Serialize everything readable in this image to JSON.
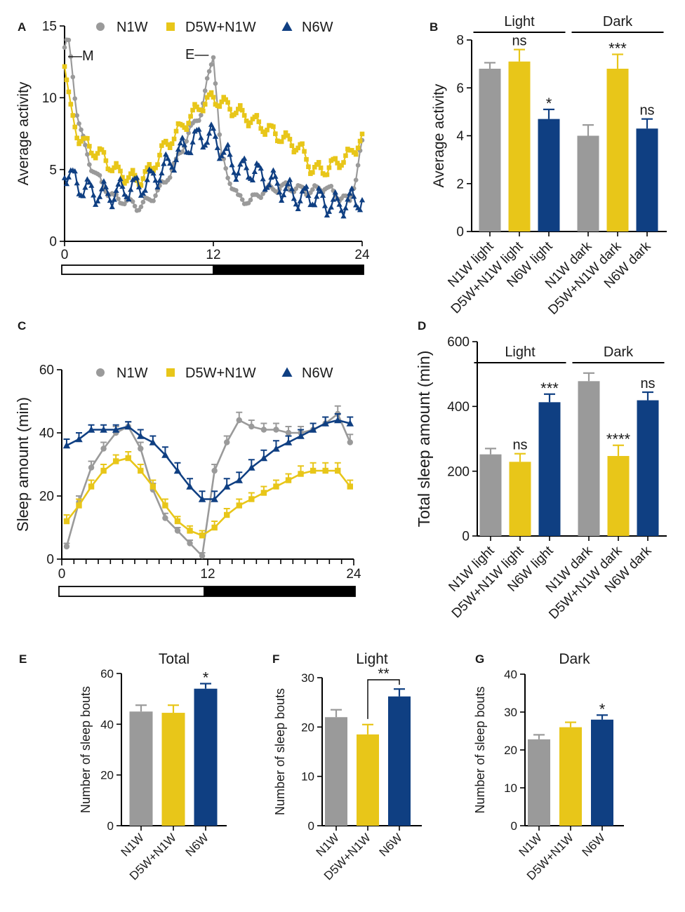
{
  "colors": {
    "n1w": "#9a9a9a",
    "d5w": "#e8c619",
    "n6w": "#0f3f82",
    "axis": "#000000"
  },
  "legend": {
    "n1w": "N1W",
    "d5w": "D5W+N1W",
    "n6w": "N6W"
  },
  "chart_data": [
    {
      "id": "A",
      "panel": "A",
      "type": "line",
      "ylabel": "Average activity",
      "xlabel": "",
      "ylim": [
        0,
        15
      ],
      "xlim": [
        0,
        24
      ],
      "yticks": [
        "0",
        "5",
        "10",
        "15"
      ],
      "xticks": [
        "0",
        "12",
        "24"
      ],
      "annotations": [
        "M",
        "E"
      ],
      "light_dark_bar": [
        "light 0-12",
        "dark 12-24"
      ],
      "series": [
        {
          "name": "N1W",
          "color": "#9a9a9a",
          "marker": "circle",
          "anchors": [
            [
              0,
              13.5
            ],
            [
              0.3,
              14
            ],
            [
              0.6,
              12
            ],
            [
              1,
              9
            ],
            [
              1.5,
              7
            ],
            [
              2,
              5.5
            ],
            [
              3,
              4
            ],
            [
              4,
              3
            ],
            [
              5,
              2.8
            ],
            [
              6,
              2.4
            ],
            [
              7,
              3
            ],
            [
              8,
              4
            ],
            [
              9,
              5.5
            ],
            [
              10,
              7.5
            ],
            [
              11,
              9
            ],
            [
              11.5,
              11
            ],
            [
              12,
              13
            ],
            [
              12.3,
              10
            ],
            [
              12.6,
              6
            ],
            [
              13.2,
              4.5
            ],
            [
              14,
              3
            ],
            [
              15,
              2.8
            ],
            [
              16,
              3.5
            ],
            [
              17,
              3.7
            ],
            [
              18,
              3.8
            ],
            [
              19,
              3.6
            ],
            [
              20,
              3.5
            ],
            [
              21,
              3.8
            ],
            [
              22,
              3.2
            ],
            [
              23,
              2.8
            ],
            [
              23.5,
              4.5
            ],
            [
              24,
              6.8
            ]
          ]
        },
        {
          "name": "D5W+N1W",
          "color": "#e8c619",
          "marker": "square",
          "anchors": [
            [
              0,
              12.5
            ],
            [
              0.5,
              9
            ],
            [
              1,
              7.5
            ],
            [
              2,
              6.5
            ],
            [
              3,
              6
            ],
            [
              4,
              5
            ],
            [
              5,
              4.5
            ],
            [
              6,
              4.3
            ],
            [
              7,
              5
            ],
            [
              8,
              6.5
            ],
            [
              9,
              7.5
            ],
            [
              10,
              8.5
            ],
            [
              11,
              9.5
            ],
            [
              12,
              10
            ],
            [
              13,
              9.5
            ],
            [
              14,
              9
            ],
            [
              15,
              8.5
            ],
            [
              16,
              8
            ],
            [
              17,
              7.5
            ],
            [
              18,
              7
            ],
            [
              19,
              6.5
            ],
            [
              20,
              5
            ],
            [
              21,
              5
            ],
            [
              22,
              5.5
            ],
            [
              23,
              6
            ],
            [
              24,
              7.2
            ]
          ]
        },
        {
          "name": "N6W",
          "color": "#0f3f82",
          "marker": "triangle",
          "anchors": [
            [
              0,
              5
            ],
            [
              1,
              4
            ],
            [
              2,
              3.5
            ],
            [
              3,
              3.3
            ],
            [
              4,
              3.3
            ],
            [
              5,
              3.7
            ],
            [
              6,
              3.8
            ],
            [
              7,
              4.3
            ],
            [
              8,
              5
            ],
            [
              9,
              6
            ],
            [
              10,
              6.8
            ],
            [
              11,
              7.3
            ],
            [
              12,
              7.3
            ],
            [
              13,
              6
            ],
            [
              14,
              5
            ],
            [
              15,
              5
            ],
            [
              16,
              4.5
            ],
            [
              17,
              4
            ],
            [
              18,
              3.5
            ],
            [
              19,
              3
            ],
            [
              20,
              3.2
            ],
            [
              21,
              2.7
            ],
            [
              22,
              2.5
            ],
            [
              23,
              2.8
            ],
            [
              24,
              3
            ]
          ]
        }
      ]
    },
    {
      "id": "B",
      "panel": "B",
      "type": "bar",
      "ylabel": "Average activity",
      "ylim": [
        0,
        8
      ],
      "yticks": [
        "0",
        "2",
        "4",
        "6",
        "8"
      ],
      "categories": [
        "N1W light",
        "D5W+N1W light",
        "N6W light",
        "N1W dark",
        "D5W+N1W dark",
        "N6W dark"
      ],
      "values": [
        6.8,
        7.1,
        4.7,
        4.0,
        6.8,
        4.3
      ],
      "errors": [
        0.25,
        0.5,
        0.4,
        0.45,
        0.6,
        0.4
      ],
      "colors": [
        "#9a9a9a",
        "#e8c619",
        "#0f3f82",
        "#9a9a9a",
        "#e8c619",
        "#0f3f82"
      ],
      "sig": [
        "",
        "ns",
        "*",
        "",
        "***",
        "ns"
      ],
      "groups": [
        {
          "label": "Light",
          "from": 0,
          "to": 2
        },
        {
          "label": "Dark",
          "from": 3,
          "to": 5
        }
      ]
    },
    {
      "id": "C",
      "panel": "C",
      "type": "line",
      "ylabel": "Sleep amount (min)",
      "ylim": [
        0,
        60
      ],
      "xlim": [
        0,
        24
      ],
      "yticks": [
        "0",
        "20",
        "40",
        "60"
      ],
      "xticks": [
        "0",
        "12",
        "24"
      ],
      "light_dark_bar": [
        "light 0-12",
        "dark 12-24"
      ],
      "series": [
        {
          "name": "N1W",
          "color": "#9a9a9a",
          "marker": "circle",
          "values": [
            4,
            18,
            29,
            35,
            40,
            42,
            35,
            22,
            13,
            9,
            5,
            1,
            28,
            37,
            44,
            42,
            41,
            41,
            40,
            40,
            41,
            43,
            46,
            37
          ],
          "errors": [
            1,
            2,
            2,
            2,
            2,
            1.5,
            2,
            2,
            1.5,
            1,
            1,
            1,
            2,
            2,
            2.5,
            2,
            2,
            2,
            2,
            2,
            2,
            2,
            2.5,
            2.5
          ]
        },
        {
          "name": "D5W+N1W",
          "color": "#e8c619",
          "marker": "square",
          "values": [
            12,
            17,
            23,
            28,
            31,
            32,
            28,
            23,
            17,
            12,
            9,
            7.5,
            10,
            14,
            17,
            19,
            21,
            23,
            25,
            27,
            28,
            28,
            28,
            23
          ],
          "errors": [
            2,
            2,
            2,
            2,
            2,
            2,
            2,
            2,
            2,
            1.5,
            1.5,
            1.5,
            2,
            2,
            2,
            2,
            2,
            2,
            2,
            2.5,
            2.5,
            2.5,
            2.5,
            2
          ]
        },
        {
          "name": "N6W",
          "color": "#0f3f82",
          "marker": "triangle",
          "values": [
            36,
            38,
            41,
            41,
            41,
            42,
            39,
            37,
            33,
            28,
            23,
            19,
            19,
            23,
            25,
            29,
            32,
            35,
            37,
            39,
            41,
            43,
            44,
            43
          ],
          "errors": [
            2,
            2,
            1.5,
            1.5,
            1.5,
            1.5,
            2,
            2,
            2.5,
            2.5,
            2.5,
            2.5,
            2.5,
            2.5,
            2.5,
            2.5,
            2.5,
            2.5,
            2,
            2,
            2,
            2,
            2,
            2
          ]
        }
      ]
    },
    {
      "id": "D",
      "panel": "D",
      "type": "bar",
      "ylabel": "Total sleep amount (min)",
      "ylim": [
        0,
        600
      ],
      "yticks": [
        "0",
        "200",
        "400",
        "600"
      ],
      "categories": [
        "N1W light",
        "D5W+N1W light",
        "N6W light",
        "N1W dark",
        "D5W+N1W dark",
        "N6W dark"
      ],
      "values": [
        252,
        229,
        413,
        478,
        247,
        419
      ],
      "errors": [
        18,
        25,
        25,
        25,
        33,
        25
      ],
      "colors": [
        "#9a9a9a",
        "#e8c619",
        "#0f3f82",
        "#9a9a9a",
        "#e8c619",
        "#0f3f82"
      ],
      "sig": [
        "",
        "ns",
        "***",
        "",
        "****",
        "ns"
      ],
      "groups": [
        {
          "label": "Light",
          "from": 0,
          "to": 2
        },
        {
          "label": "Dark",
          "from": 3,
          "to": 5
        }
      ]
    },
    {
      "id": "E",
      "panel": "E",
      "type": "bar",
      "title": "Total",
      "ylabel": "Number of sleep bouts",
      "ylim": [
        0,
        60
      ],
      "yticks": [
        "0",
        "20",
        "40",
        "60"
      ],
      "categories": [
        "N1W",
        "D5W+N1W",
        "N6W"
      ],
      "values": [
        45,
        44.5,
        54
      ],
      "errors": [
        2.5,
        3,
        2
      ],
      "colors": [
        "#9a9a9a",
        "#e8c619",
        "#0f3f82"
      ],
      "sig": [
        "",
        "",
        "*"
      ]
    },
    {
      "id": "F",
      "panel": "F",
      "type": "bar",
      "title": "Light",
      "ylabel": "Number of sleep bouts",
      "ylim": [
        0,
        30
      ],
      "yticks": [
        "0",
        "10",
        "20",
        "30"
      ],
      "categories": [
        "N1W",
        "D5W+N1W",
        "N6W"
      ],
      "values": [
        22,
        18.5,
        26.2
      ],
      "errors": [
        1.5,
        2,
        1.5
      ],
      "colors": [
        "#9a9a9a",
        "#e8c619",
        "#0f3f82"
      ],
      "sig": [
        "",
        "",
        ""
      ],
      "bracket": {
        "from": 1,
        "to": 2,
        "label": "**"
      }
    },
    {
      "id": "G",
      "panel": "G",
      "type": "bar",
      "title": "Dark",
      "ylabel": "Number of sleep bouts",
      "ylim": [
        0,
        40
      ],
      "yticks": [
        "0",
        "10",
        "20",
        "30",
        "40"
      ],
      "categories": [
        "N1W",
        "D5W+N1W",
        "N6W"
      ],
      "values": [
        22.8,
        26,
        28
      ],
      "errors": [
        1.2,
        1.3,
        1.2
      ],
      "colors": [
        "#9a9a9a",
        "#e8c619",
        "#0f3f82"
      ],
      "sig": [
        "",
        "",
        "*"
      ]
    }
  ]
}
